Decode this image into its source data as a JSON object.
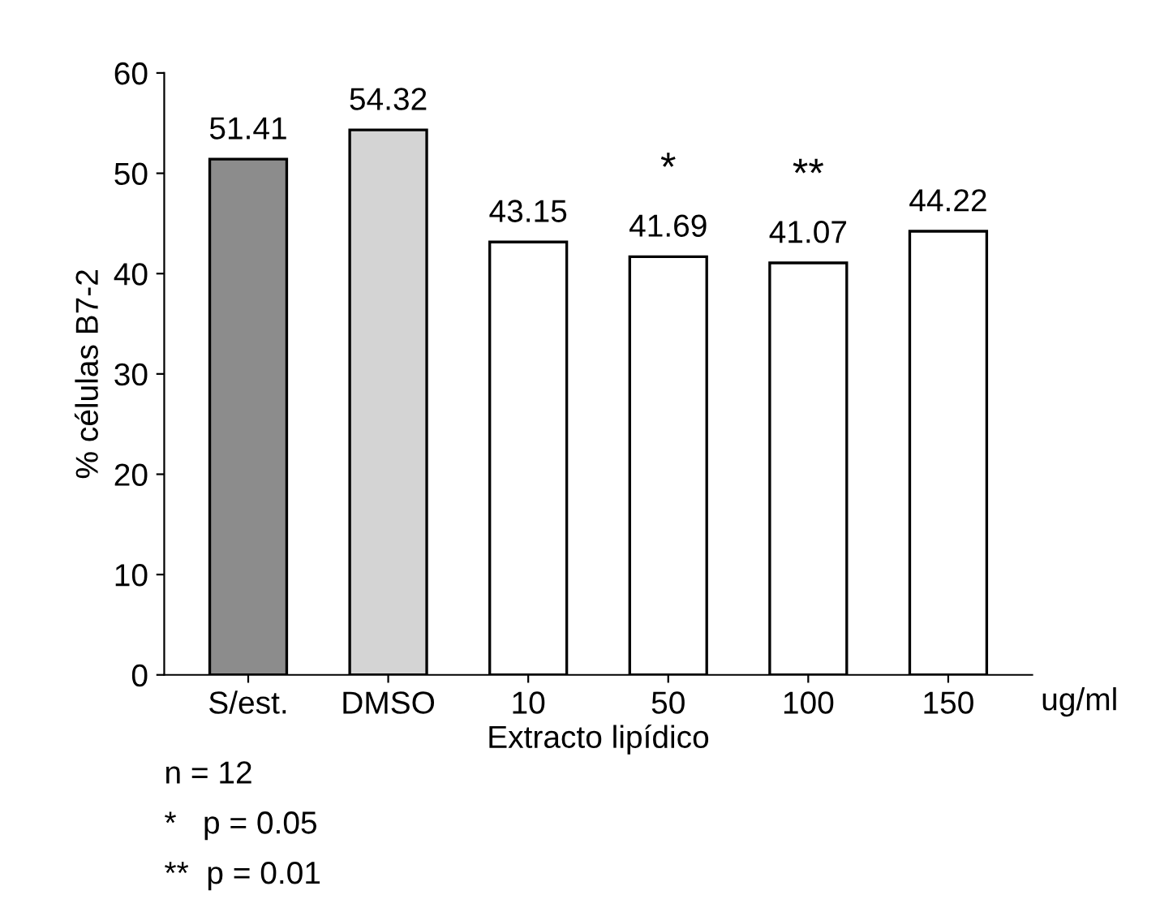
{
  "chart_data": {
    "type": "bar",
    "ylabel": "% células B7-2",
    "xlabel": "Extracto lipídico",
    "categories": [
      "S/est.",
      "DMSO",
      "10",
      "50",
      "100",
      "150"
    ],
    "values": [
      51.41,
      54.32,
      43.15,
      41.69,
      41.07,
      44.22
    ],
    "colors": [
      "#8c8c8c",
      "#d4d4d4",
      "#ffffff",
      "#ffffff",
      "#ffffff",
      "#ffffff"
    ],
    "ylim": [
      0,
      60
    ],
    "yticks": [
      0,
      10,
      20,
      30,
      40,
      50,
      60
    ],
    "data_labels": true,
    "grid": false,
    "legend": false,
    "annotations": [
      "ug/ml",
      "n = 12",
      "*   p = 0.05",
      "**  p = 0.01",
      {
        "text": "*",
        "x": "50",
        "y": 41.69
      },
      {
        "text": "**",
        "x": "100",
        "y": 41.07
      }
    ]
  }
}
